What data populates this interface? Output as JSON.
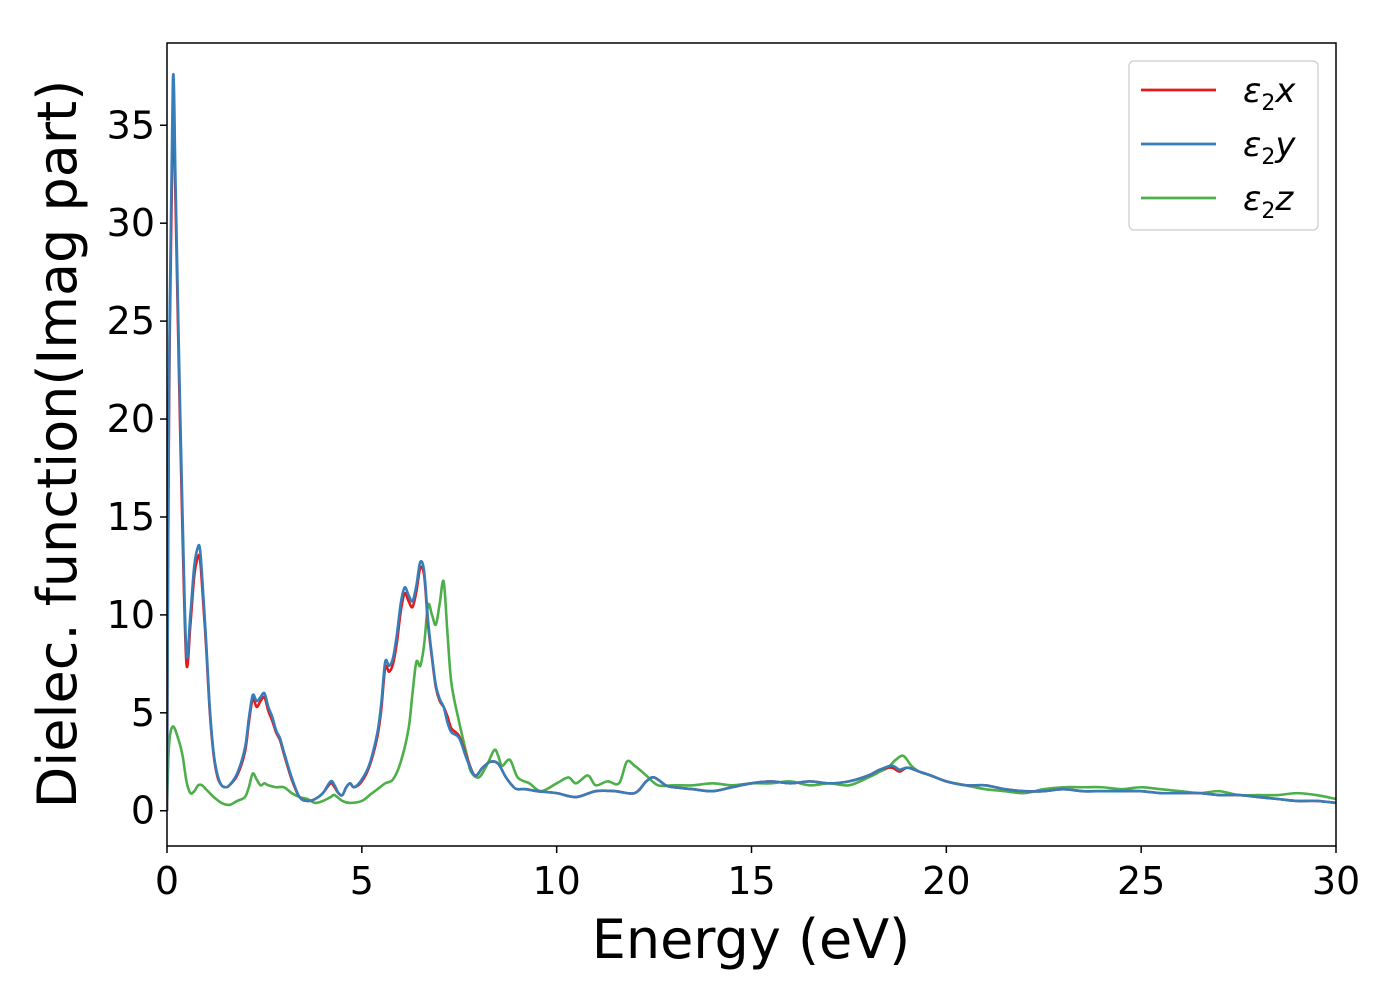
{
  "chart_data": {
    "type": "line",
    "xlabel": "Energy (eV)",
    "ylabel": "Dielec. function(Imag part)",
    "xlim": [
      0,
      30
    ],
    "ylim": [
      -1.8,
      39.2
    ],
    "xticks": [
      0,
      5,
      10,
      15,
      20,
      25,
      30
    ],
    "yticks": [
      0,
      5,
      10,
      15,
      20,
      25,
      30,
      35
    ],
    "grid": false,
    "legend_position": "top-right",
    "series": [
      {
        "name": "ε2x",
        "base": "ε",
        "sub": "2",
        "axis": "x",
        "color": "#e41a1c",
        "x": [
          0,
          0.05,
          0.15,
          0.22,
          0.3,
          0.4,
          0.5,
          0.6,
          0.7,
          0.8,
          0.85,
          0.9,
          1.0,
          1.1,
          1.2,
          1.3,
          1.4,
          1.5,
          1.6,
          1.8,
          2.0,
          2.1,
          2.2,
          2.3,
          2.4,
          2.5,
          2.6,
          2.7,
          2.8,
          2.9,
          3.0,
          3.2,
          3.4,
          3.6,
          3.8,
          4.0,
          4.2,
          4.3,
          4.4,
          4.5,
          4.6,
          4.7,
          4.8,
          5.0,
          5.2,
          5.4,
          5.5,
          5.6,
          5.7,
          5.8,
          5.9,
          6.0,
          6.1,
          6.2,
          6.3,
          6.4,
          6.5,
          6.6,
          6.7,
          6.8,
          6.9,
          7.0,
          7.1,
          7.2,
          7.3,
          7.5,
          7.7,
          7.9,
          8.1,
          8.3,
          8.5,
          8.7,
          8.9,
          9.0,
          9.2,
          9.5,
          10,
          10.5,
          11,
          11.5,
          12,
          12.3,
          12.5,
          12.8,
          13,
          13.5,
          14,
          14.5,
          15,
          15.5,
          16,
          16.5,
          17,
          17.5,
          18,
          18.3,
          18.6,
          18.8,
          19,
          19.3,
          19.6,
          20,
          20.5,
          21,
          21.5,
          22,
          22.5,
          23,
          23.5,
          24,
          24.5,
          25,
          25.5,
          26,
          26.5,
          27,
          27.5,
          28,
          28.5,
          29,
          29.5,
          30
        ],
        "y": [
          0,
          20,
          35.5,
          31,
          23,
          14,
          7.5,
          9.5,
          12,
          13,
          12.8,
          11.5,
          8.5,
          5,
          2.8,
          1.7,
          1.3,
          1.2,
          1.3,
          1.8,
          3.0,
          4.5,
          5.7,
          5.3,
          5.6,
          5.8,
          5.1,
          4.6,
          4.0,
          3.6,
          2.9,
          1.6,
          0.7,
          0.5,
          0.6,
          0.9,
          1.4,
          1.2,
          0.9,
          0.8,
          1.2,
          1.4,
          1.2,
          1.5,
          2.3,
          3.8,
          5.2,
          7.3,
          7.1,
          7.5,
          8.6,
          10.2,
          11.1,
          10.7,
          10.4,
          11.2,
          12.4,
          12.0,
          9.5,
          7.8,
          6.3,
          5.6,
          5.3,
          4.8,
          4.2,
          3.8,
          2.7,
          1.8,
          2.2,
          2.5,
          2.4,
          1.7,
          1.2,
          1.1,
          1.1,
          1.0,
          0.9,
          0.7,
          1.0,
          1.0,
          0.9,
          1.5,
          1.7,
          1.3,
          1.2,
          1.1,
          1.0,
          1.2,
          1.4,
          1.5,
          1.4,
          1.5,
          1.4,
          1.5,
          1.8,
          2.1,
          2.2,
          2.0,
          2.2,
          2.0,
          1.8,
          1.5,
          1.3,
          1.3,
          1.1,
          1.0,
          1.0,
          1.1,
          1.0,
          1.0,
          1.0,
          1.0,
          0.9,
          0.9,
          0.9,
          0.8,
          0.8,
          0.7,
          0.6,
          0.5,
          0.5,
          0.4
        ]
      },
      {
        "name": "ε2y",
        "base": "ε",
        "sub": "2",
        "axis": "y",
        "color": "#377eb8",
        "x": [
          0,
          0.05,
          0.15,
          0.22,
          0.3,
          0.4,
          0.5,
          0.6,
          0.7,
          0.8,
          0.85,
          0.9,
          1.0,
          1.1,
          1.2,
          1.3,
          1.4,
          1.5,
          1.6,
          1.8,
          2.0,
          2.1,
          2.2,
          2.3,
          2.4,
          2.5,
          2.6,
          2.7,
          2.8,
          2.9,
          3.0,
          3.2,
          3.4,
          3.6,
          3.8,
          4.0,
          4.2,
          4.3,
          4.4,
          4.5,
          4.6,
          4.7,
          4.8,
          5.0,
          5.2,
          5.4,
          5.5,
          5.6,
          5.7,
          5.8,
          5.9,
          6.0,
          6.1,
          6.2,
          6.3,
          6.4,
          6.5,
          6.6,
          6.7,
          6.8,
          6.9,
          7.0,
          7.1,
          7.2,
          7.3,
          7.5,
          7.7,
          7.9,
          8.1,
          8.3,
          8.5,
          8.7,
          8.9,
          9.0,
          9.2,
          9.5,
          10,
          10.5,
          11,
          11.5,
          12,
          12.3,
          12.5,
          12.8,
          13,
          13.5,
          14,
          14.5,
          15,
          15.5,
          16,
          16.5,
          17,
          17.5,
          18,
          18.3,
          18.6,
          18.8,
          19,
          19.3,
          19.6,
          20,
          20.5,
          21,
          21.5,
          22,
          22.5,
          23,
          23.5,
          24,
          24.5,
          25,
          25.5,
          26,
          26.5,
          27,
          27.5,
          28,
          28.5,
          29,
          29.5,
          30
        ],
        "y": [
          0,
          21,
          37.2,
          32,
          24,
          15,
          8.0,
          10,
          12.5,
          13.5,
          13.3,
          12,
          8.8,
          5.2,
          2.9,
          1.8,
          1.3,
          1.2,
          1.3,
          1.9,
          3.2,
          4.7,
          5.9,
          5.6,
          5.8,
          6.0,
          5.3,
          4.8,
          4.1,
          3.7,
          3.0,
          1.7,
          0.7,
          0.5,
          0.6,
          0.9,
          1.5,
          1.3,
          0.9,
          0.8,
          1.2,
          1.4,
          1.2,
          1.6,
          2.4,
          4.0,
          5.5,
          7.6,
          7.4,
          7.8,
          9.0,
          10.6,
          11.4,
          11.0,
          10.7,
          11.5,
          12.7,
          12.2,
          9.7,
          7.9,
          6.4,
          5.7,
          5.3,
          4.5,
          4.0,
          3.7,
          2.6,
          1.8,
          2.2,
          2.5,
          2.4,
          1.7,
          1.2,
          1.1,
          1.1,
          1.0,
          0.9,
          0.7,
          1.0,
          1.0,
          0.9,
          1.5,
          1.7,
          1.3,
          1.2,
          1.1,
          1.0,
          1.2,
          1.4,
          1.5,
          1.4,
          1.5,
          1.4,
          1.5,
          1.8,
          2.1,
          2.3,
          2.1,
          2.2,
          2.0,
          1.8,
          1.5,
          1.3,
          1.3,
          1.1,
          1.0,
          1.0,
          1.1,
          1.0,
          1.0,
          1.0,
          1.0,
          0.9,
          0.9,
          0.9,
          0.8,
          0.8,
          0.7,
          0.6,
          0.5,
          0.5,
          0.4
        ]
      },
      {
        "name": "ε2z",
        "base": "ε",
        "sub": "2",
        "axis": "z",
        "color": "#4daf4a",
        "x": [
          0,
          0.05,
          0.15,
          0.3,
          0.4,
          0.5,
          0.6,
          0.7,
          0.8,
          0.9,
          1.0,
          1.2,
          1.4,
          1.6,
          1.8,
          2.0,
          2.1,
          2.2,
          2.3,
          2.4,
          2.5,
          2.6,
          2.8,
          3.0,
          3.2,
          3.4,
          3.6,
          3.8,
          4.0,
          4.2,
          4.3,
          4.5,
          4.7,
          5.0,
          5.2,
          5.4,
          5.6,
          5.8,
          6.0,
          6.2,
          6.3,
          6.4,
          6.5,
          6.6,
          6.7,
          6.8,
          6.9,
          7.0,
          7.1,
          7.2,
          7.3,
          7.5,
          7.7,
          7.8,
          8.0,
          8.2,
          8.4,
          8.5,
          8.6,
          8.8,
          9.0,
          9.3,
          9.6,
          10,
          10.3,
          10.5,
          10.8,
          11,
          11.3,
          11.6,
          11.8,
          12,
          12.3,
          12.6,
          13,
          13.5,
          14,
          14.5,
          15,
          15.5,
          16,
          16.5,
          17,
          17.5,
          18,
          18.3,
          18.5,
          18.7,
          18.9,
          19.1,
          19.3,
          19.6,
          20,
          20.5,
          21,
          21.5,
          22,
          22.5,
          23,
          23.5,
          24,
          24.5,
          25,
          25.5,
          26,
          26.5,
          27,
          27.5,
          28,
          28.5,
          29,
          29.5,
          30
        ],
        "y": [
          0,
          3.3,
          4.3,
          3.6,
          2.8,
          1.5,
          0.9,
          1.0,
          1.3,
          1.3,
          1.1,
          0.7,
          0.4,
          0.3,
          0.5,
          0.7,
          1.2,
          1.9,
          1.6,
          1.3,
          1.4,
          1.3,
          1.2,
          1.2,
          0.9,
          0.7,
          0.6,
          0.4,
          0.5,
          0.7,
          0.8,
          0.5,
          0.4,
          0.5,
          0.8,
          1.1,
          1.4,
          1.6,
          2.5,
          4.2,
          6.0,
          7.6,
          7.4,
          8.5,
          10.5,
          10.0,
          9.5,
          10.6,
          11.7,
          9.0,
          6.5,
          4.5,
          2.8,
          2.0,
          1.7,
          2.3,
          3.1,
          2.8,
          2.3,
          2.6,
          1.7,
          1.4,
          1.0,
          1.4,
          1.7,
          1.4,
          1.8,
          1.3,
          1.5,
          1.4,
          2.5,
          2.3,
          1.8,
          1.3,
          1.3,
          1.3,
          1.4,
          1.3,
          1.4,
          1.4,
          1.5,
          1.3,
          1.4,
          1.3,
          1.7,
          2.0,
          2.2,
          2.6,
          2.8,
          2.3,
          2.0,
          1.8,
          1.5,
          1.3,
          1.1,
          1.0,
          0.9,
          1.1,
          1.2,
          1.2,
          1.2,
          1.1,
          1.2,
          1.1,
          1.0,
          0.9,
          1.0,
          0.8,
          0.8,
          0.8,
          0.9,
          0.8,
          0.6
        ]
      }
    ]
  }
}
